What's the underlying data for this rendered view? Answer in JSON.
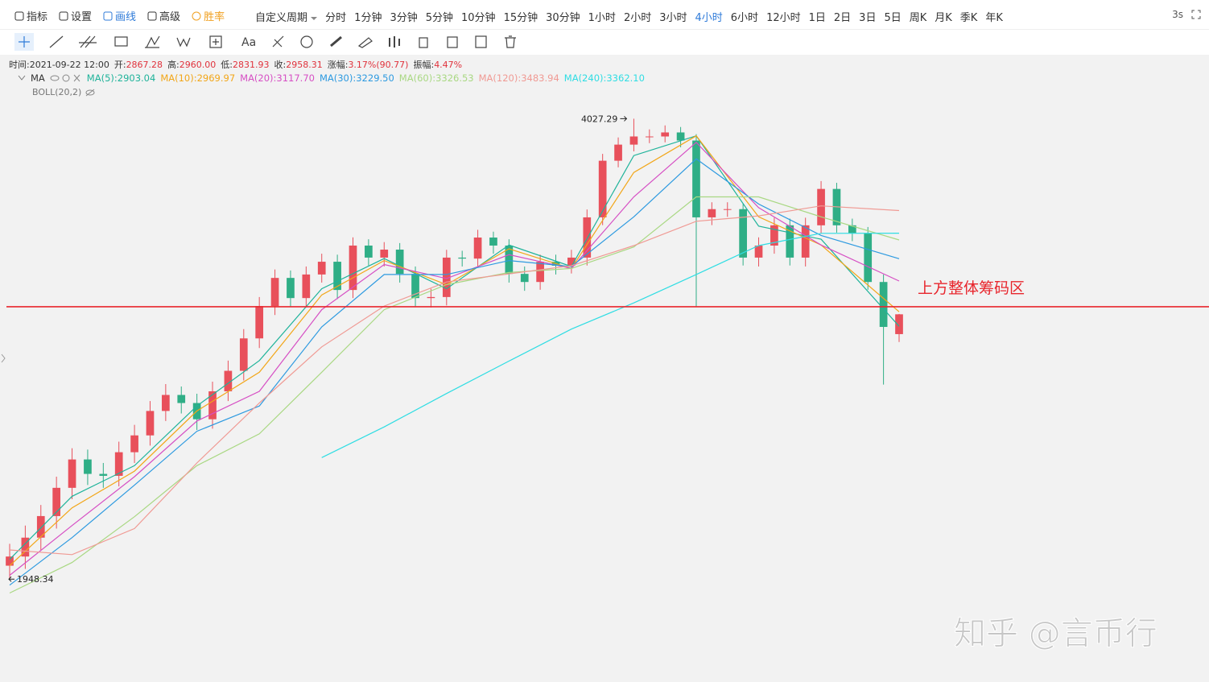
{
  "toolbar": {
    "tools": [
      "指标",
      "设置",
      "画线",
      "高级",
      "胜率"
    ],
    "custom_period": "自定义周期",
    "periods": [
      "分时",
      "1分钟",
      "3分钟",
      "5分钟",
      "10分钟",
      "15分钟",
      "30分钟",
      "1小时",
      "2小时",
      "3小时",
      "4小时",
      "6小时",
      "12小时",
      "1日",
      "2日",
      "3日",
      "5日",
      "周K",
      "月K",
      "季K",
      "年K"
    ],
    "active_period": 10,
    "refresh": "3s",
    "text_tool": "Aa"
  },
  "watermark": "知乎 @言币行",
  "chart_data": {
    "type": "candlestick",
    "info": [
      {
        "label": "时间:",
        "value": "2021-09-22 12:00"
      },
      {
        "label": "开:",
        "value": "2867.28"
      },
      {
        "label": "高:",
        "value": "2960.00"
      },
      {
        "label": "低:",
        "value": "2831.93"
      },
      {
        "label": "收:",
        "value": "2958.31"
      },
      {
        "label": "涨幅:",
        "value": "3.17%(90.77)"
      },
      {
        "label": "振幅:",
        "value": "4.47%"
      }
    ],
    "indicator": "MA",
    "boll": "BOLL(20,2)",
    "log_scale": true,
    "ylim": [
      1850,
      4170
    ],
    "up_color": "#e8505b",
    "down_color": "#2fae86",
    "candles": {
      "open": [
        1990,
        2019,
        2080,
        2152,
        2250,
        2353,
        2300,
        2293,
        2380,
        2444,
        2540,
        2605,
        2572,
        2507,
        2620,
        2706,
        2848,
        2997,
        3133,
        3035,
        3150,
        3214,
        3074,
        3297,
        3235,
        3276,
        3153,
        3035,
        3040,
        3235,
        3230,
        3339,
        3297,
        3153,
        3113,
        3214,
        3194,
        3235,
        3447,
        3769,
        3866,
        3916,
        3916,
        3941,
        3891,
        3447,
        3492,
        3492,
        3235,
        3297,
        3404,
        3235,
        3404,
        3605,
        3404,
        3361,
        3113,
        2867.28
      ],
      "high": [
        2060,
        2120,
        2190,
        2290,
        2395,
        2390,
        2340,
        2420,
        2485,
        2580,
        2650,
        2640,
        2610,
        2660,
        2750,
        2890,
        3040,
        3175,
        3170,
        3190,
        3255,
        3250,
        3340,
        3330,
        3315,
        3310,
        3190,
        3080,
        3275,
        3270,
        3380,
        3370,
        3330,
        3190,
        3250,
        3250,
        3275,
        3490,
        3810,
        3910,
        4027.29,
        3960,
        3985,
        3975,
        3930,
        3530,
        3530,
        3520,
        3340,
        3445,
        3440,
        3445,
        3650,
        3640,
        3440,
        3395,
        3150,
        2960
      ],
      "low": [
        1948.34,
        1980,
        2040,
        2110,
        2210,
        2260,
        2250,
        2255,
        2340,
        2405,
        2500,
        2530,
        2465,
        2470,
        2580,
        2665,
        2805,
        2955,
        2995,
        2990,
        3110,
        3030,
        3035,
        3195,
        3190,
        3110,
        2995,
        2990,
        3000,
        3190,
        3185,
        3255,
        3110,
        3070,
        3075,
        3150,
        3155,
        3195,
        3405,
        3730,
        3825,
        3875,
        3880,
        3850,
        2994,
        3405,
        3450,
        3195,
        3190,
        3255,
        3195,
        3190,
        3360,
        3365,
        3320,
        3075,
        2648,
        2831.93
      ],
      "close": [
        2019,
        2080,
        2152,
        2250,
        2353,
        2300,
        2293,
        2380,
        2444,
        2540,
        2605,
        2572,
        2507,
        2620,
        2706,
        2848,
        2997,
        3133,
        3035,
        3150,
        3214,
        3074,
        3297,
        3235,
        3276,
        3153,
        3035,
        3040,
        3235,
        3230,
        3339,
        3297,
        3153,
        3113,
        3214,
        3194,
        3235,
        3447,
        3769,
        3866,
        3916,
        3916,
        3941,
        3891,
        3447,
        3492,
        3492,
        3235,
        3297,
        3404,
        3235,
        3404,
        3605,
        3404,
        3361,
        3113,
        2900,
        2958.31
      ]
    },
    "ma_index": [
      0,
      4,
      8,
      12,
      16,
      20,
      24,
      28,
      32,
      36,
      40,
      44,
      48,
      52,
      57
    ],
    "series": [
      {
        "name": "MA(5):2903.04",
        "color": "#1fb39a",
        "values": [
          2010,
          2220,
          2330,
          2560,
          2750,
          3080,
          3230,
          3080,
          3300,
          3190,
          3800,
          3920,
          3400,
          3330,
          2903.04
        ]
      },
      {
        "name": "MA(10):2969.97",
        "color": "#f2a618",
        "values": [
          1990,
          2180,
          2310,
          2540,
          2700,
          3050,
          3220,
          3100,
          3280,
          3180,
          3700,
          3920,
          3450,
          3300,
          2969.97
        ]
      },
      {
        "name": "MA(20):3117.70",
        "color": "#d64fc4",
        "values": [
          1960,
          2120,
          2290,
          2500,
          2620,
          2980,
          3200,
          3130,
          3250,
          3180,
          3560,
          3880,
          3500,
          3300,
          3117.7
        ]
      },
      {
        "name": "MA(30):3229.50",
        "color": "#2d9ae0",
        "values": [
          1930,
          2080,
          2260,
          2460,
          2560,
          2900,
          3150,
          3150,
          3220,
          3190,
          3450,
          3780,
          3520,
          3350,
          3229.5
        ]
      },
      {
        "name": "MA(60):3326.53",
        "color": "#a9d883",
        "values": [
          1906,
          2000,
          2150,
          2330,
          2450,
          2700,
          2980,
          3100,
          3160,
          3180,
          3290,
          3560,
          3560,
          3450,
          3326.53
        ]
      },
      {
        "name": "MA(120):3483.94",
        "color": "#f09a94",
        "values": [
          2040,
          2025,
          2110,
          2340,
          2572,
          2810,
          2997,
          3113,
          3153,
          3194,
          3297,
          3426,
          3455,
          3510,
          3483.94
        ]
      },
      {
        "name": "MA(240):3362.10",
        "color": "#2fdde3",
        "values": [
          null,
          null,
          null,
          null,
          null,
          2360,
          2477,
          2611,
          2748,
          2890,
          3012,
          3150,
          3297,
          3361,
          3362.1
        ]
      }
    ],
    "high_marker": {
      "value": 4027.29
    },
    "low_marker": {
      "value": 1948.34
    },
    "hline": {
      "value": 2994,
      "label": "上方整体筹码区",
      "color": "#e8262d"
    }
  }
}
